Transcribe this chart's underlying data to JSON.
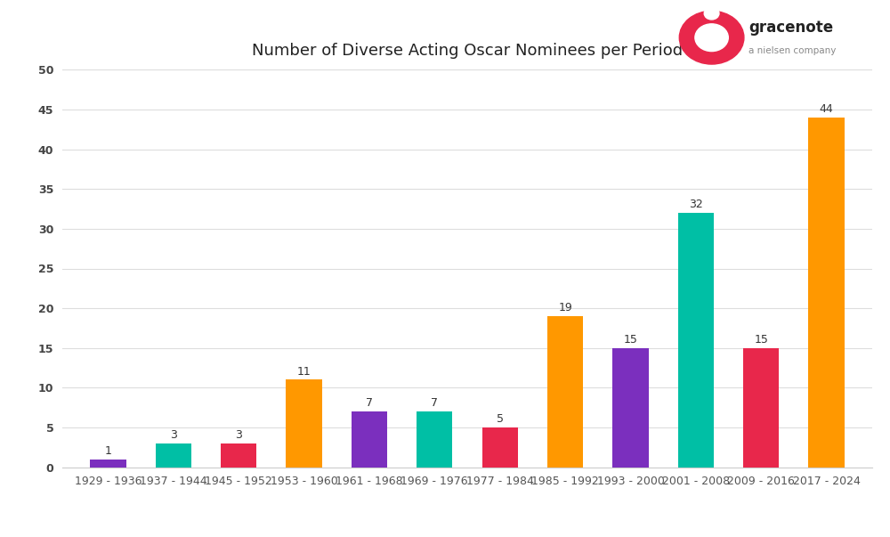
{
  "title": "Number of Diverse Acting Oscar Nominees per Period",
  "categories": [
    "1929 - 1936",
    "1937 - 1944",
    "1945 - 1952",
    "1953 - 1960",
    "1961 - 1968",
    "1969 - 1976",
    "1977 - 1984",
    "1985 - 1992",
    "1993 - 2000",
    "2001 - 2008",
    "2009 - 2016",
    "2017 - 2024"
  ],
  "values": [
    1,
    3,
    3,
    11,
    7,
    7,
    5,
    19,
    15,
    32,
    15,
    44
  ],
  "bar_colors": [
    "#7B2FBE",
    "#00BFA5",
    "#E8274B",
    "#FF9800",
    "#7B2FBE",
    "#00BFA5",
    "#E8274B",
    "#FF9800",
    "#7B2FBE",
    "#00BFA5",
    "#E8274B",
    "#FF9800"
  ],
  "ylim": [
    0,
    50
  ],
  "yticks": [
    0,
    5,
    10,
    15,
    20,
    25,
    30,
    35,
    40,
    45,
    50
  ],
  "background_color": "#FFFFFF",
  "title_fontsize": 13,
  "tick_fontsize": 9,
  "value_fontsize": 9,
  "grid_color": "#DDDDDD",
  "logo_color": "#E8274B",
  "bar_width": 0.55
}
